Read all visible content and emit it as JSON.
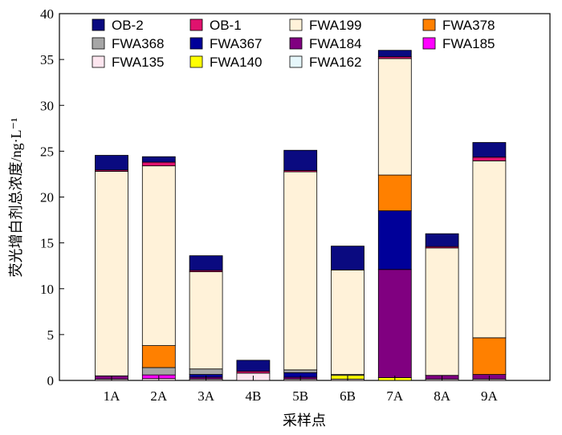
{
  "chart_data": {
    "type": "bar",
    "stacked": true,
    "xlabel": "采样点",
    "ylabel": "荧光增白剂总浓度/ng·L⁻¹",
    "ylim": [
      0,
      40
    ],
    "yticks": [
      0,
      5,
      10,
      15,
      20,
      25,
      30,
      35,
      40
    ],
    "grid": false,
    "legend_position": "top",
    "categories": [
      "1A",
      "2A",
      "3A",
      "4B",
      "5B",
      "6B",
      "7A",
      "8A",
      "9A"
    ],
    "series": [
      {
        "name": "FWA135",
        "color": "#fde6ef",
        "values": [
          0.15,
          0.2,
          0.15,
          0.8,
          0.15,
          0.15,
          0.0,
          0.15,
          0.15
        ]
      },
      {
        "name": "FWA140",
        "color": "#ffff00",
        "values": [
          0.0,
          0.0,
          0.0,
          0.0,
          0.0,
          0.4,
          0.3,
          0.0,
          0.0
        ]
      },
      {
        "name": "FWA162",
        "color": "#e6f7fb",
        "values": [
          0.0,
          0.0,
          0.0,
          0.0,
          0.0,
          0.0,
          0.0,
          0.0,
          0.0
        ]
      },
      {
        "name": "FWA185",
        "color": "#ff00ff",
        "values": [
          0.0,
          0.4,
          0.0,
          0.0,
          0.0,
          0.0,
          0.0,
          0.0,
          0.0
        ]
      },
      {
        "name": "FWA184",
        "color": "#800080",
        "values": [
          0.35,
          0.0,
          0.2,
          0.0,
          0.2,
          0.0,
          11.8,
          0.4,
          0.5
        ]
      },
      {
        "name": "FWA367",
        "color": "#000099",
        "values": [
          0.0,
          0.0,
          0.3,
          0.0,
          0.5,
          0.0,
          6.4,
          0.0,
          0.0
        ]
      },
      {
        "name": "FWA368",
        "color": "#a6a6a6",
        "values": [
          0.0,
          0.8,
          0.6,
          0.0,
          0.3,
          0.1,
          0.0,
          0.0,
          0.0
        ]
      },
      {
        "name": "FWA378",
        "color": "#ff8000",
        "values": [
          0.0,
          2.4,
          0.0,
          0.0,
          0.0,
          0.0,
          3.9,
          0.0,
          4.0
        ]
      },
      {
        "name": "FWA199",
        "color": "#fff2d9",
        "values": [
          22.3,
          19.6,
          10.6,
          0.0,
          21.6,
          11.4,
          12.7,
          13.9,
          19.3
        ]
      },
      {
        "name": "OB-1",
        "color": "#e0126e",
        "values": [
          0.15,
          0.4,
          0.15,
          0.2,
          0.15,
          0.0,
          0.2,
          0.15,
          0.4
        ]
      },
      {
        "name": "OB-2",
        "color": "#0a0a80",
        "values": [
          1.6,
          0.6,
          1.6,
          1.2,
          2.2,
          2.6,
          0.7,
          1.4,
          1.6
        ]
      }
    ],
    "legend_order": [
      "OB-2",
      "OB-1",
      "FWA199",
      "FWA378",
      "FWA368",
      "FWA367",
      "FWA184",
      "FWA185",
      "FWA135",
      "FWA140",
      "FWA162"
    ]
  }
}
